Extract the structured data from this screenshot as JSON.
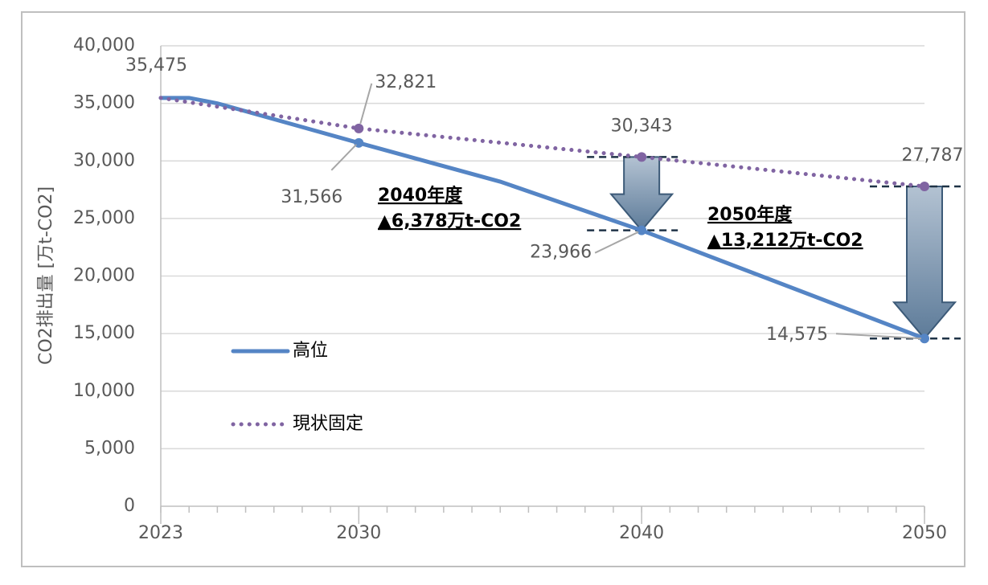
{
  "chart_data": {
    "type": "line",
    "y_label": "CO2排出量 [万t-CO2]",
    "x": [
      2023,
      2024,
      2025,
      2030,
      2035,
      2040,
      2050
    ],
    "xlim": [
      2023,
      2050
    ],
    "xticks": [
      2023,
      2030,
      2040,
      2050
    ],
    "ylim": [
      0,
      40000
    ],
    "yticks": [
      0,
      {
        "value": 5000,
        "label": "5,000"
      },
      {
        "value": 10000,
        "label": "10,000"
      },
      {
        "value": 15000,
        "label": "15,000"
      },
      {
        "value": 20000,
        "label": "20,000"
      },
      {
        "value": 25000,
        "label": "25,000"
      },
      {
        "value": 30000,
        "label": "30,000"
      },
      {
        "value": 35000,
        "label": "35,000"
      },
      {
        "value": 40000,
        "label": "40,000"
      }
    ],
    "grid": true,
    "series": [
      {
        "name": "高位",
        "color": "#5585c5",
        "style": "solid",
        "values": [
          35475,
          35475,
          35000,
          31566,
          28200,
          23966,
          14575
        ],
        "value_labels": [
          "35,475",
          null,
          null,
          "31,566",
          null,
          "23,966",
          "14,575"
        ]
      },
      {
        "name": "現状固定",
        "color": "#8064a2",
        "style": "dotted",
        "values": [
          35475,
          35096,
          34717,
          32821,
          31582,
          30343,
          27787
        ],
        "value_labels": [
          null,
          null,
          null,
          "32,821",
          null,
          "30,343",
          "27,787"
        ]
      }
    ],
    "annotations": [
      {
        "title": "2040年度",
        "text": "▲6,378万t-CO2"
      },
      {
        "title": "2050年度",
        "text": "▲13,212万t-CO2"
      }
    ]
  }
}
